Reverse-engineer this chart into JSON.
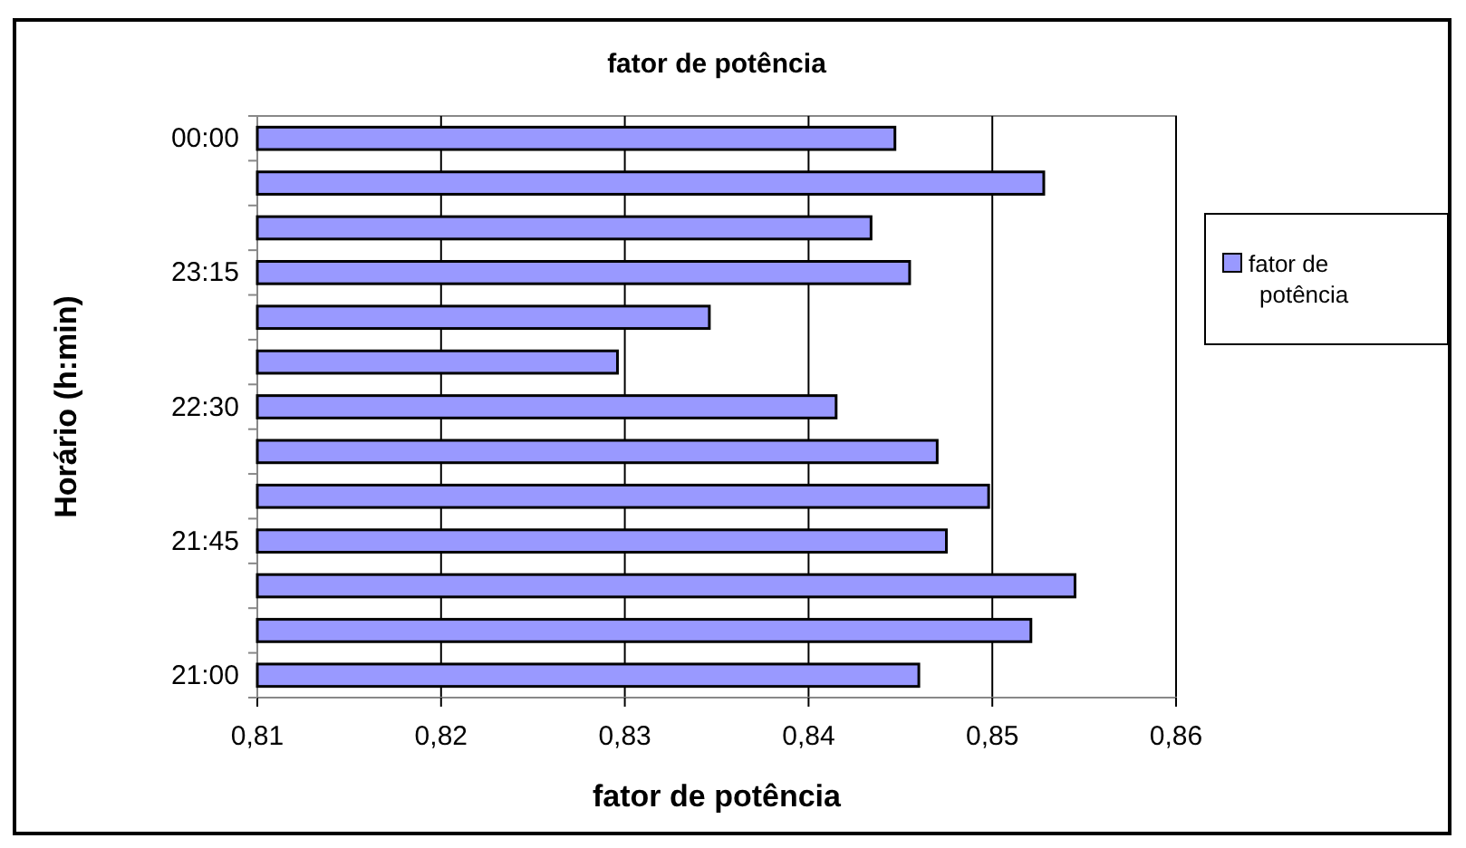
{
  "chart_data": {
    "type": "bar",
    "orientation": "horizontal",
    "title": "fator de potência",
    "xlabel": "fator de potência",
    "ylabel": "Horário (h:min)",
    "categories": [
      "00:00",
      null,
      null,
      "23:15",
      null,
      null,
      "22:30",
      null,
      null,
      "21:45",
      null,
      null,
      "21:00"
    ],
    "series": [
      {
        "name": "fator de potência",
        "color": "#9999ff",
        "values": [
          0.8447,
          0.8528,
          0.8434,
          0.8455,
          0.8346,
          0.8296,
          0.8415,
          0.847,
          0.8498,
          0.8475,
          0.8545,
          0.8521,
          0.846
        ]
      }
    ],
    "xlim": [
      0.81,
      0.86
    ],
    "xticks": [
      {
        "value": 0.81,
        "label": "0,81"
      },
      {
        "value": 0.82,
        "label": "0,82"
      },
      {
        "value": 0.83,
        "label": "0,83"
      },
      {
        "value": 0.84,
        "label": "0,84"
      },
      {
        "value": 0.85,
        "label": "0,85"
      },
      {
        "value": 0.86,
        "label": "0,86"
      }
    ],
    "grid": "x",
    "legend": "right"
  }
}
